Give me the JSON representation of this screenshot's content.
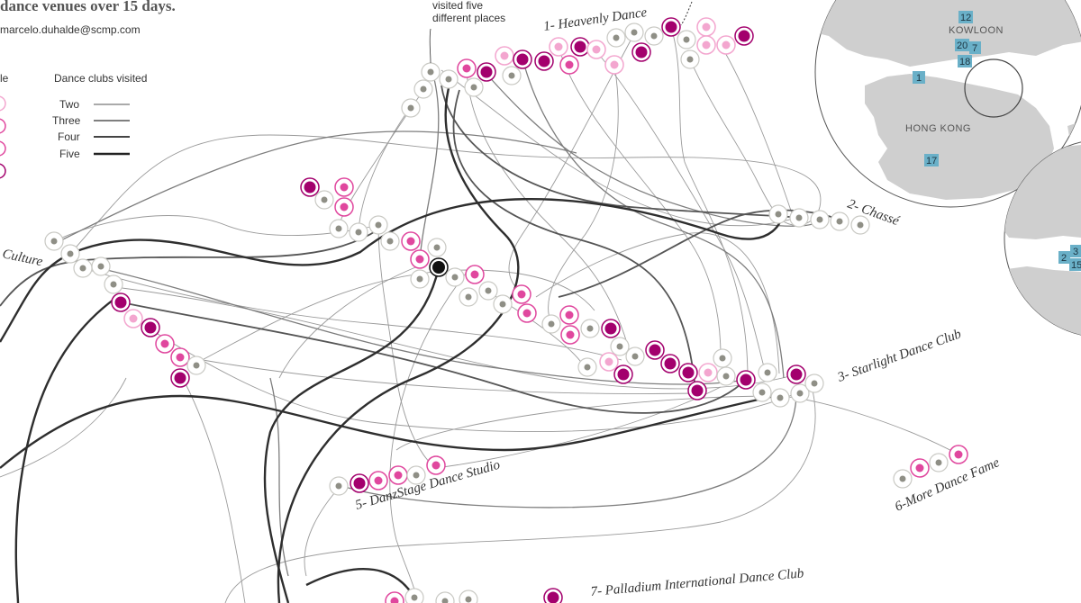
{
  "header": {
    "headline": "dance venues over 15 days.",
    "byline": "marcelo.duhalde@scmp.com"
  },
  "legend": {
    "left_label": "le",
    "title": "Dance clubs visited",
    "items": [
      {
        "label": "Two",
        "weight": 1
      },
      {
        "label": "Three",
        "weight": 1.4
      },
      {
        "label": "Four",
        "weight": 1.9
      },
      {
        "label": "Five",
        "weight": 2.6
      }
    ]
  },
  "annotation": {
    "line1": "visited five",
    "line2": "different places"
  },
  "venues": {
    "v1": "1- Heavenly Dance",
    "v2": "2- Chassé",
    "v3": "3- Starlight Dance Club",
    "v4": "Culture",
    "v5": "5- DanzStage Dance Studio",
    "v6": "6-More Dance Fame",
    "v7": "7- Palladium International Dance Club"
  },
  "map": {
    "kowloon": "KOWLOON",
    "hongkong": "HONG KONG",
    "badges": [
      "12",
      "20",
      "7",
      "18",
      "1",
      "17",
      "2",
      "3",
      "15"
    ]
  },
  "colors": {
    "magenta": "#a3006d",
    "pink": "#e0479e",
    "lightpink": "#f3a6cf",
    "gray": "#8f8f86",
    "ring": "#c9c9c4",
    "badge": "#6ab0c8"
  }
}
